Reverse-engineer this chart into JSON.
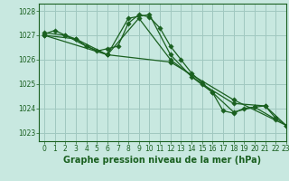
{
  "title": "Graphe pression niveau de la mer (hPa)",
  "bg_color": "#c8e8e0",
  "grid_color": "#a0c8c0",
  "line_color": "#1a6020",
  "xlim": [
    -0.5,
    23
  ],
  "ylim": [
    1022.65,
    1028.3
  ],
  "yticks": [
    1023,
    1024,
    1025,
    1026,
    1027,
    1028
  ],
  "xticks": [
    0,
    1,
    2,
    3,
    4,
    5,
    6,
    7,
    8,
    9,
    10,
    11,
    12,
    13,
    14,
    15,
    16,
    17,
    18,
    19,
    20,
    21,
    22,
    23
  ],
  "series": [
    {
      "x": [
        0,
        1,
        2,
        3,
        4,
        5,
        6,
        7,
        8,
        9,
        10,
        11,
        12,
        13,
        14,
        15,
        16,
        17,
        18,
        19,
        20,
        21,
        22,
        23
      ],
      "y": [
        1027.05,
        1027.2,
        1027.0,
        1026.85,
        1026.55,
        1026.35,
        1026.45,
        1026.55,
        1027.5,
        1027.85,
        1027.75,
        1027.3,
        1026.55,
        1026.0,
        1025.45,
        1025.05,
        1024.65,
        1023.9,
        1023.8,
        1024.0,
        1024.05,
        1024.1,
        1023.6,
        1023.3
      ]
    },
    {
      "x": [
        0,
        2,
        4,
        6,
        8,
        10,
        12,
        14,
        16,
        18,
        20,
        22
      ],
      "y": [
        1027.1,
        1027.0,
        1026.55,
        1026.2,
        1027.7,
        1027.85,
        1026.2,
        1025.3,
        1024.65,
        1023.85,
        1024.05,
        1023.55
      ]
    },
    {
      "x": [
        0,
        3,
        6,
        9,
        12,
        15,
        18,
        21,
        23
      ],
      "y": [
        1027.0,
        1026.85,
        1026.2,
        1027.7,
        1026.0,
        1025.0,
        1024.2,
        1024.1,
        1023.3
      ]
    },
    {
      "x": [
        0,
        6,
        12,
        18,
        23
      ],
      "y": [
        1027.0,
        1026.2,
        1025.9,
        1024.35,
        1023.3
      ]
    }
  ],
  "marker": "D",
  "markersize": 2.8,
  "linewidth": 0.9,
  "tick_fontsize": 5.5,
  "label_fontsize": 7.0
}
